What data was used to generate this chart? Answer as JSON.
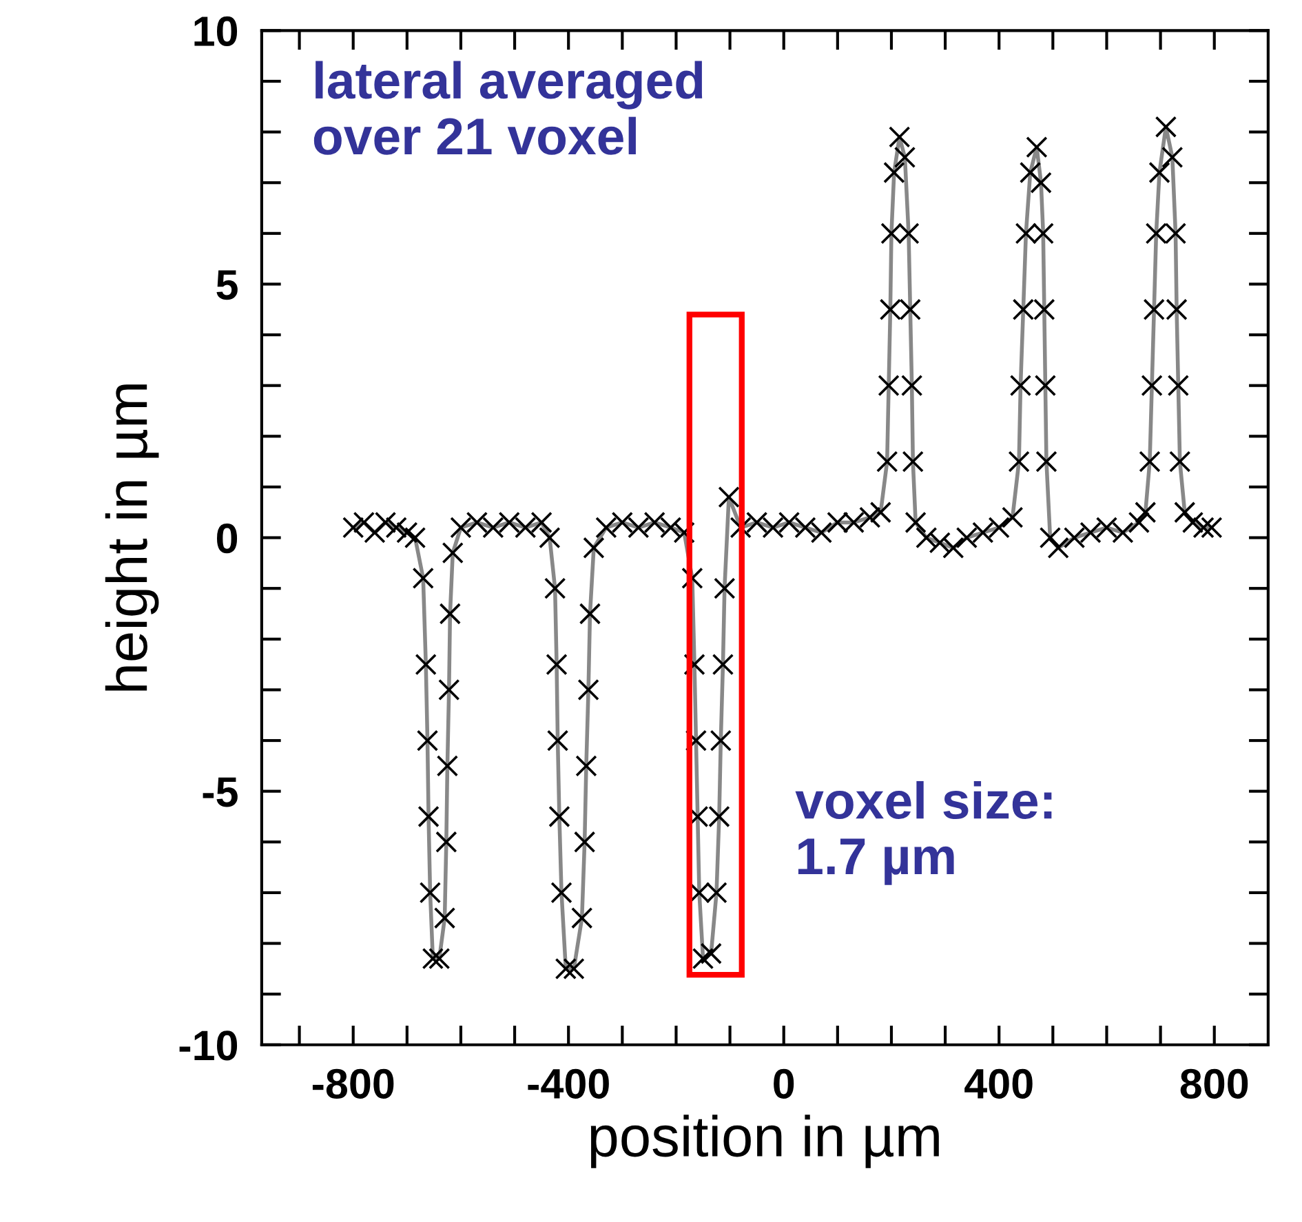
{
  "chart_data": {
    "type": "line",
    "xlabel": "position in µm",
    "ylabel": "height in µm",
    "annotations": [
      "lateral averaged\nover 21 voxel",
      "voxel size:\n1.7 µm"
    ],
    "xlim": [
      -970,
      900
    ],
    "ylim": [
      -10,
      10
    ],
    "xticks": [
      {
        "value": -900,
        "label": null
      },
      -800,
      {
        "value": -700,
        "label": null
      },
      {
        "value": -600,
        "label": null
      },
      {
        "value": -500,
        "label": null
      },
      -400,
      {
        "value": -300,
        "label": null
      },
      {
        "value": -200,
        "label": null
      },
      {
        "value": -100,
        "label": null
      },
      0,
      {
        "value": 100,
        "label": null
      },
      {
        "value": 200,
        "label": null
      },
      {
        "value": 300,
        "label": null
      },
      400,
      {
        "value": 500,
        "label": null
      },
      {
        "value": 600,
        "label": null
      },
      {
        "value": 700,
        "label": null
      },
      800
    ],
    "yticks": [
      -10,
      {
        "value": -9,
        "label": null
      },
      {
        "value": -8,
        "label": null
      },
      {
        "value": -7,
        "label": null
      },
      {
        "value": -6,
        "label": null
      },
      -5,
      {
        "value": -4,
        "label": null
      },
      {
        "value": -3,
        "label": null
      },
      {
        "value": -2,
        "label": null
      },
      {
        "value": -1,
        "label": null
      },
      0,
      {
        "value": 1,
        "label": null
      },
      {
        "value": 2,
        "label": null
      },
      {
        "value": 3,
        "label": null
      },
      {
        "value": 4,
        "label": null
      },
      5,
      {
        "value": 6,
        "label": null
      },
      {
        "value": 7,
        "label": null
      },
      {
        "value": 8,
        "label": null
      },
      {
        "value": 9,
        "label": null
      },
      10
    ],
    "marker": "cross",
    "grid": false,
    "legend": false,
    "series": [
      {
        "color": "#000000",
        "x": [
          -800,
          -780,
          -760,
          -740,
          -720,
          -700,
          -685,
          -670,
          -665,
          -662,
          -660,
          -657,
          -652,
          -640,
          -630,
          -627,
          -625,
          -622,
          -620,
          -615,
          -600,
          -570,
          -540,
          -510,
          -480,
          -450,
          -435,
          -425,
          -422,
          -420,
          -417,
          -413,
          -405,
          -390,
          -375,
          -370,
          -367,
          -363,
          -360,
          -353,
          -330,
          -300,
          -270,
          -240,
          -210,
          -185,
          -170,
          -166,
          -163,
          -160,
          -157,
          -150,
          -135,
          -125,
          -120,
          -117,
          -113,
          -110,
          -102,
          -80,
          -50,
          -20,
          10,
          40,
          70,
          100,
          130,
          160,
          180,
          192,
          195,
          198,
          200,
          205,
          215,
          225,
          232,
          235,
          238,
          240,
          245,
          265,
          290,
          315,
          340,
          370,
          400,
          425,
          437,
          440,
          445,
          450,
          458,
          470,
          478,
          482,
          484,
          486,
          488,
          495,
          510,
          540,
          570,
          600,
          630,
          660,
          672,
          680,
          684,
          688,
          692,
          698,
          710,
          722,
          728,
          730,
          733,
          736,
          745,
          760,
          780,
          795
        ],
        "values": [
          0.2,
          0.3,
          0.1,
          0.3,
          0.2,
          0.1,
          0.0,
          -0.8,
          -2.5,
          -4,
          -5.5,
          -7,
          -8.3,
          -8.3,
          -7.5,
          -6,
          -4.5,
          -3,
          -1.5,
          -0.3,
          0.2,
          0.3,
          0.2,
          0.3,
          0.2,
          0.3,
          0.0,
          -1,
          -2.5,
          -4,
          -5.5,
          -7,
          -8.5,
          -8.5,
          -7.5,
          -6,
          -4.5,
          -3,
          -1.5,
          -0.2,
          0.2,
          0.3,
          0.2,
          0.3,
          0.2,
          0.1,
          -0.8,
          -2.5,
          -4,
          -5.5,
          -7,
          -8.3,
          -8.2,
          -7,
          -5.5,
          -4,
          -2.5,
          -1,
          0.8,
          0.2,
          0.3,
          0.2,
          0.3,
          0.2,
          0.1,
          0.3,
          0.3,
          0.4,
          0.5,
          1.5,
          3,
          4.5,
          6,
          7.2,
          7.9,
          7.5,
          6,
          4.5,
          3,
          1.5,
          0.3,
          0.0,
          -0.1,
          -0.2,
          0.0,
          0.1,
          0.2,
          0.4,
          1.5,
          3,
          4.5,
          6,
          7.2,
          7.7,
          7,
          6,
          4.5,
          3,
          1.5,
          0.0,
          -0.2,
          0.0,
          0.1,
          0.2,
          0.1,
          0.3,
          0.5,
          1.5,
          3,
          4.5,
          6,
          7.2,
          8.1,
          7.5,
          6,
          4.5,
          3,
          1.5,
          0.5,
          0.3,
          0.2,
          0.2
        ]
      }
    ]
  }
}
